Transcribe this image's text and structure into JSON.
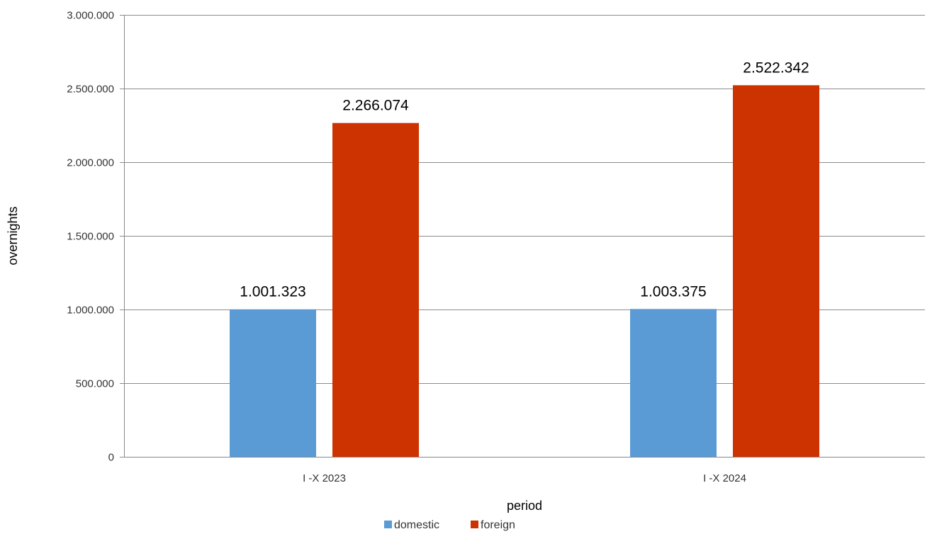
{
  "chart_data": {
    "type": "bar",
    "title": "",
    "xlabel": "period",
    "ylabel": "overnights",
    "categories": [
      "I -X 2023",
      "I -X 2024"
    ],
    "series": [
      {
        "name": "domestic",
        "color": "#5b9bd5",
        "values": [
          1001323,
          1003375
        ],
        "labels": [
          "1.001.323",
          "1.003.375"
        ]
      },
      {
        "name": "foreign",
        "color": "#cc3300",
        "values": [
          2266074,
          2522342
        ],
        "labels": [
          "2.266.074",
          "2.522.342"
        ]
      }
    ],
    "ylim": [
      0,
      3000000
    ],
    "yticks": [
      0,
      500000,
      1000000,
      1500000,
      2000000,
      2500000,
      3000000
    ],
    "ytick_labels": [
      "0",
      "500.000",
      "1.000.000",
      "1.500.000",
      "2.000.000",
      "2.500.000",
      "3.000.000"
    ],
    "grid": true,
    "legend_position": "bottom"
  }
}
